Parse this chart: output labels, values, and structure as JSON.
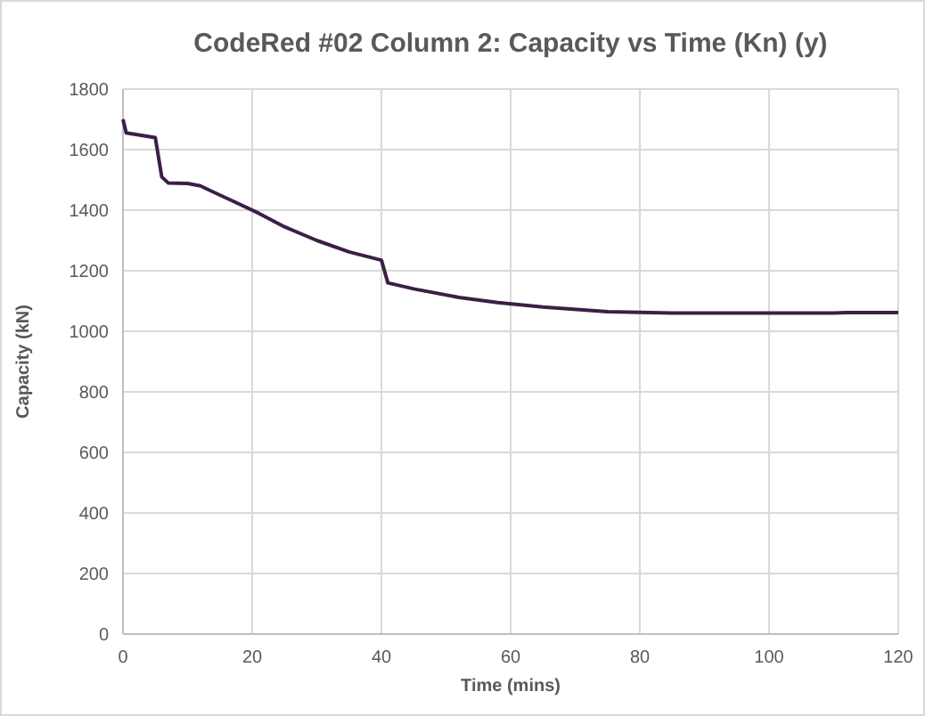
{
  "chart_data": {
    "type": "line",
    "title": "CodeRed #02 Column 2: Capacity vs Time (Kn) (y)",
    "xlabel": "Time (mins)",
    "ylabel": "Capacity (kN)",
    "x": [
      0,
      0.5,
      2,
      5,
      6,
      7,
      10,
      12,
      13,
      17,
      21,
      25,
      30,
      35,
      40,
      41,
      45,
      52,
      58,
      65,
      75,
      85,
      110,
      112,
      120
    ],
    "series": [
      {
        "color": "#3b1f45",
        "values": [
          1700,
          1655,
          1650,
          1640,
          1510,
          1490,
          1488,
          1480,
          1470,
          1430,
          1390,
          1345,
          1300,
          1262,
          1235,
          1160,
          1140,
          1112,
          1095,
          1080,
          1065,
          1060,
          1060,
          1062,
          1062
        ]
      }
    ],
    "xlim": [
      0,
      120
    ],
    "xticks": [
      0,
      20,
      40,
      60,
      80,
      100,
      120
    ],
    "ylim": [
      0,
      1800
    ],
    "yticks": [
      0,
      200,
      400,
      600,
      800,
      1000,
      1200,
      1400,
      1600,
      1800
    ],
    "grid": true,
    "marker": "none",
    "line_style": "solid"
  }
}
